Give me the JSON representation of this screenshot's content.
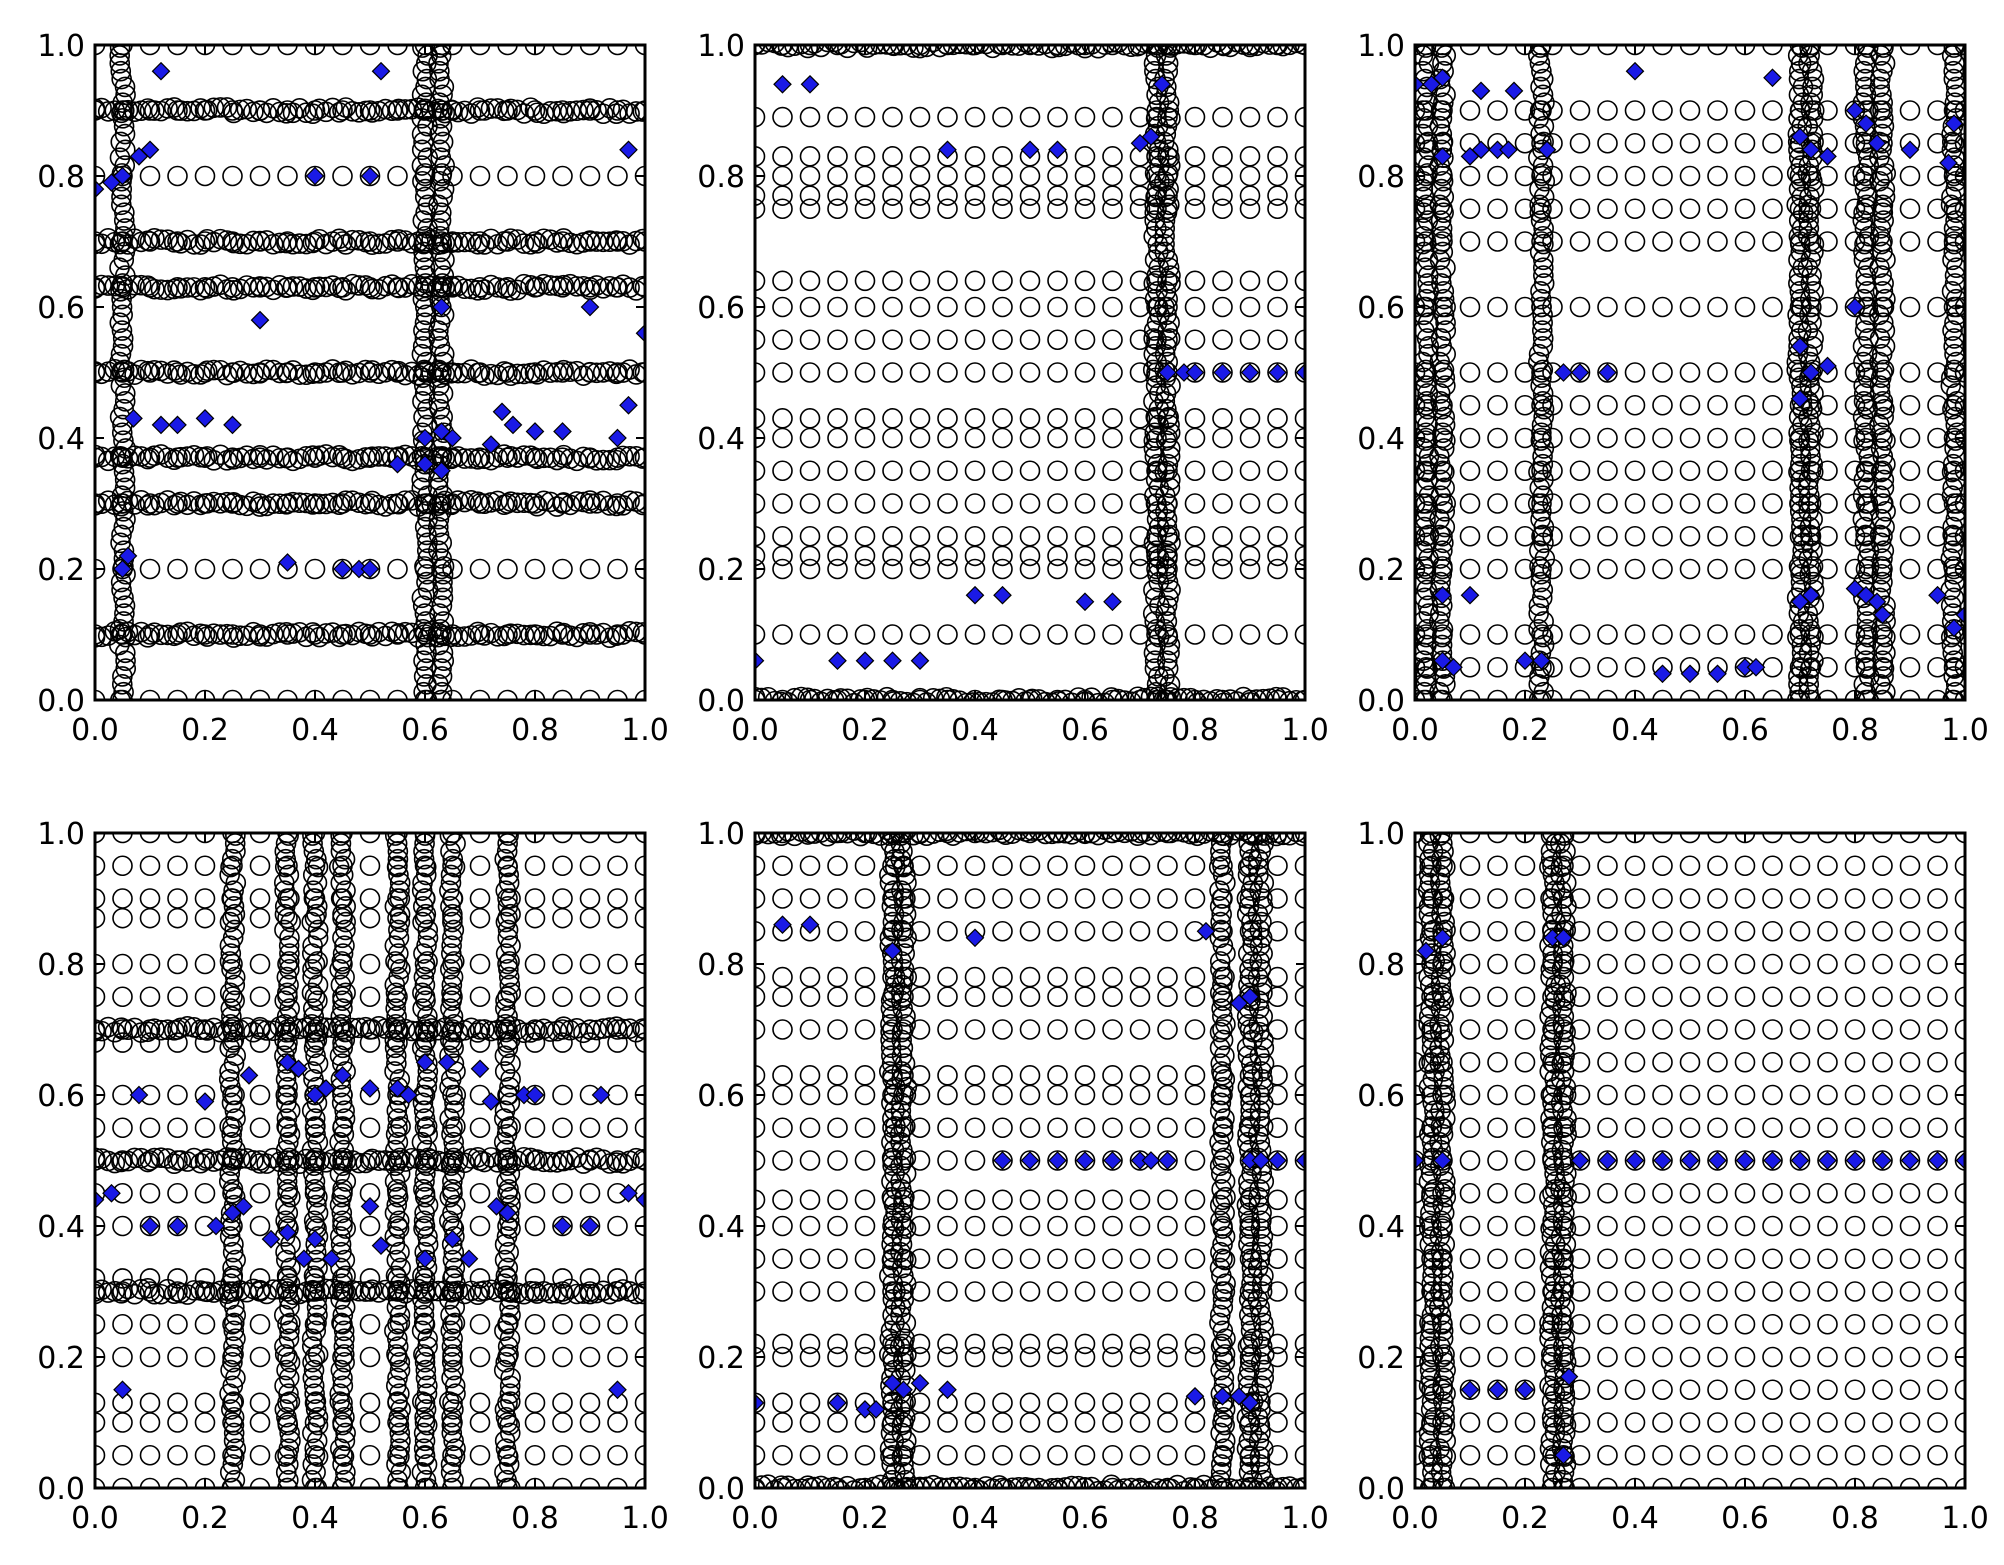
{
  "figure": {
    "layout": "2x3 grid of scatter panels",
    "background": "#ffffff"
  },
  "style": {
    "circle_marker": {
      "fill": "none",
      "stroke": "#000000"
    },
    "diamond_marker": {
      "fill": "#1a1ae6",
      "stroke": "#000000"
    },
    "axes_color": "#000000"
  },
  "chart_data": [
    {
      "type": "scatter",
      "panel": "top-left",
      "xlim": [
        0,
        1
      ],
      "ylim": [
        0,
        1
      ],
      "xticks": [
        "0.0",
        "0.2",
        "0.4",
        "0.6",
        "0.8",
        "1.0"
      ],
      "yticks": [
        "0.0",
        "0.2",
        "0.4",
        "0.6",
        "0.8",
        "1.0"
      ],
      "title": "",
      "xlabel": "",
      "ylabel": "",
      "grid": false,
      "circle_columns": [
        0.0,
        0.05,
        0.1,
        0.15,
        0.2,
        0.25,
        0.3,
        0.35,
        0.4,
        0.45,
        0.5,
        0.55,
        0.6,
        0.63,
        0.65,
        0.7,
        0.75,
        0.8,
        0.85,
        0.9,
        0.95,
        1.0
      ],
      "circle_rows": [
        0.0,
        0.1,
        0.2,
        0.3,
        0.37,
        0.5,
        0.63,
        0.7,
        0.8,
        0.9,
        1.0
      ],
      "dense_rows": [
        0.5,
        0.37,
        0.3,
        0.63,
        0.7,
        0.9,
        0.1
      ],
      "dense_columns": [
        0.05,
        0.6,
        0.63
      ],
      "diamonds": [
        [
          0.0,
          0.78
        ],
        [
          0.03,
          0.79
        ],
        [
          0.05,
          0.8
        ],
        [
          0.08,
          0.83
        ],
        [
          0.1,
          0.84
        ],
        [
          0.12,
          0.96
        ],
        [
          0.4,
          0.8
        ],
        [
          0.5,
          0.8
        ],
        [
          0.52,
          0.96
        ],
        [
          0.97,
          0.84
        ],
        [
          0.3,
          0.58
        ],
        [
          0.9,
          0.6
        ],
        [
          0.63,
          0.6
        ],
        [
          1.0,
          0.56
        ],
        [
          0.07,
          0.43
        ],
        [
          0.12,
          0.42
        ],
        [
          0.15,
          0.42
        ],
        [
          0.2,
          0.43
        ],
        [
          0.25,
          0.42
        ],
        [
          0.6,
          0.4
        ],
        [
          0.63,
          0.41
        ],
        [
          0.65,
          0.4
        ],
        [
          0.72,
          0.39
        ],
        [
          0.74,
          0.44
        ],
        [
          0.76,
          0.42
        ],
        [
          0.8,
          0.41
        ],
        [
          0.85,
          0.41
        ],
        [
          0.95,
          0.4
        ],
        [
          0.97,
          0.45
        ],
        [
          0.55,
          0.36
        ],
        [
          0.6,
          0.36
        ],
        [
          0.63,
          0.35
        ],
        [
          0.05,
          0.2
        ],
        [
          0.06,
          0.22
        ],
        [
          0.35,
          0.21
        ],
        [
          0.45,
          0.2
        ],
        [
          0.48,
          0.2
        ],
        [
          0.5,
          0.2
        ]
      ]
    },
    {
      "type": "scatter",
      "panel": "top-middle",
      "xlim": [
        0,
        1
      ],
      "ylim": [
        0,
        1
      ],
      "xticks": [
        "0.0",
        "0.2",
        "0.4",
        "0.6",
        "0.8",
        "1.0"
      ],
      "yticks": [
        "0.0",
        "0.2",
        "0.4",
        "0.6",
        "0.8",
        "1.0"
      ],
      "title": "",
      "xlabel": "",
      "ylabel": "",
      "grid": false,
      "circle_columns": [
        0.0,
        0.05,
        0.1,
        0.15,
        0.2,
        0.25,
        0.3,
        0.35,
        0.4,
        0.45,
        0.5,
        0.55,
        0.6,
        0.65,
        0.7,
        0.73,
        0.75,
        0.8,
        0.85,
        0.9,
        0.95,
        1.0
      ],
      "circle_rows": [
        0.0,
        0.1,
        0.2,
        0.22,
        0.25,
        0.3,
        0.35,
        0.4,
        0.43,
        0.5,
        0.55,
        0.6,
        0.64,
        0.75,
        0.77,
        0.8,
        0.83,
        0.89,
        1.0
      ],
      "dense_rows": [
        0.0,
        1.0
      ],
      "dense_columns": [
        0.73,
        0.75
      ],
      "diamonds": [
        [
          0.0,
          0.06
        ],
        [
          0.15,
          0.06
        ],
        [
          0.2,
          0.06
        ],
        [
          0.25,
          0.06
        ],
        [
          0.3,
          0.06
        ],
        [
          0.05,
          0.94
        ],
        [
          0.1,
          0.94
        ],
        [
          0.35,
          0.84
        ],
        [
          0.5,
          0.84
        ],
        [
          0.55,
          0.84
        ],
        [
          0.7,
          0.85
        ],
        [
          0.72,
          0.86
        ],
        [
          0.74,
          0.94
        ],
        [
          0.4,
          0.16
        ],
        [
          0.45,
          0.16
        ],
        [
          0.6,
          0.15
        ],
        [
          0.65,
          0.15
        ],
        [
          0.75,
          0.5
        ],
        [
          0.78,
          0.5
        ],
        [
          0.8,
          0.5
        ],
        [
          0.85,
          0.5
        ],
        [
          0.9,
          0.5
        ],
        [
          0.95,
          0.5
        ],
        [
          1.0,
          0.5
        ]
      ]
    },
    {
      "type": "scatter",
      "panel": "top-right",
      "xlim": [
        0,
        1
      ],
      "ylim": [
        0,
        1
      ],
      "xticks": [
        "0.0",
        "0.2",
        "0.4",
        "0.6",
        "0.8",
        "1.0"
      ],
      "yticks": [
        "0.0",
        "0.2",
        "0.4",
        "0.6",
        "0.8",
        "1.0"
      ],
      "title": "",
      "xlabel": "",
      "ylabel": "",
      "grid": false,
      "circle_columns": [
        0.0,
        0.02,
        0.05,
        0.1,
        0.15,
        0.2,
        0.23,
        0.25,
        0.3,
        0.35,
        0.4,
        0.45,
        0.5,
        0.55,
        0.6,
        0.65,
        0.7,
        0.72,
        0.75,
        0.8,
        0.82,
        0.85,
        0.9,
        0.95,
        0.98,
        1.0
      ],
      "circle_rows": [
        0.0,
        0.05,
        0.1,
        0.2,
        0.25,
        0.3,
        0.35,
        0.4,
        0.45,
        0.5,
        0.6,
        0.7,
        0.75,
        0.8,
        0.85,
        0.9,
        1.0
      ],
      "dense_rows": [],
      "dense_columns": [
        0.02,
        0.05,
        0.23,
        0.7,
        0.72,
        0.82,
        0.85,
        0.98
      ],
      "diamonds": [
        [
          0.0,
          0.94
        ],
        [
          0.03,
          0.94
        ],
        [
          0.05,
          0.95
        ],
        [
          0.12,
          0.93
        ],
        [
          0.18,
          0.93
        ],
        [
          0.24,
          0.84
        ],
        [
          0.4,
          0.96
        ],
        [
          0.65,
          0.95
        ],
        [
          0.7,
          0.86
        ],
        [
          0.72,
          0.84
        ],
        [
          0.75,
          0.83
        ],
        [
          0.8,
          0.9
        ],
        [
          0.82,
          0.88
        ],
        [
          0.84,
          0.85
        ],
        [
          0.9,
          0.84
        ],
        [
          0.97,
          0.82
        ],
        [
          0.98,
          0.88
        ],
        [
          0.05,
          0.83
        ],
        [
          0.1,
          0.83
        ],
        [
          0.12,
          0.84
        ],
        [
          0.15,
          0.84
        ],
        [
          0.17,
          0.84
        ],
        [
          0.27,
          0.5
        ],
        [
          0.3,
          0.5
        ],
        [
          0.35,
          0.5
        ],
        [
          0.7,
          0.54
        ],
        [
          0.72,
          0.5
        ],
        [
          0.8,
          0.6
        ],
        [
          0.75,
          0.51
        ],
        [
          0.7,
          0.46
        ],
        [
          0.05,
          0.16
        ],
        [
          0.1,
          0.16
        ],
        [
          0.05,
          0.06
        ],
        [
          0.07,
          0.05
        ],
        [
          0.2,
          0.06
        ],
        [
          0.23,
          0.06
        ],
        [
          0.45,
          0.04
        ],
        [
          0.5,
          0.04
        ],
        [
          0.55,
          0.04
        ],
        [
          0.6,
          0.05
        ],
        [
          0.62,
          0.05
        ],
        [
          0.7,
          0.15
        ],
        [
          0.72,
          0.16
        ],
        [
          0.8,
          0.17
        ],
        [
          0.82,
          0.16
        ],
        [
          0.84,
          0.15
        ],
        [
          0.85,
          0.13
        ],
        [
          0.95,
          0.16
        ],
        [
          0.98,
          0.11
        ],
        [
          1.0,
          0.13
        ]
      ]
    },
    {
      "type": "scatter",
      "panel": "bottom-left",
      "xlim": [
        0,
        1
      ],
      "ylim": [
        0,
        1
      ],
      "xticks": [
        "0.0",
        "0.2",
        "0.4",
        "0.6",
        "0.8",
        "1.0"
      ],
      "yticks": [
        "0.0",
        "0.2",
        "0.4",
        "0.6",
        "0.8",
        "1.0"
      ],
      "title": "",
      "xlabel": "",
      "ylabel": "",
      "grid": false,
      "circle_columns": [
        0.0,
        0.05,
        0.1,
        0.15,
        0.2,
        0.25,
        0.3,
        0.35,
        0.4,
        0.45,
        0.5,
        0.55,
        0.6,
        0.65,
        0.7,
        0.75,
        0.8,
        0.85,
        0.9,
        0.95,
        1.0
      ],
      "circle_rows": [
        0.0,
        0.05,
        0.1,
        0.13,
        0.2,
        0.25,
        0.3,
        0.32,
        0.4,
        0.45,
        0.5,
        0.55,
        0.6,
        0.68,
        0.7,
        0.75,
        0.8,
        0.87,
        0.9,
        0.95,
        1.0
      ],
      "dense_rows": [
        0.5,
        0.3,
        0.7
      ],
      "dense_columns": [
        0.25,
        0.35,
        0.4,
        0.45,
        0.55,
        0.6,
        0.65,
        0.75
      ],
      "diamonds": [
        [
          0.08,
          0.6
        ],
        [
          0.2,
          0.59
        ],
        [
          0.28,
          0.63
        ],
        [
          0.35,
          0.65
        ],
        [
          0.37,
          0.64
        ],
        [
          0.4,
          0.6
        ],
        [
          0.42,
          0.61
        ],
        [
          0.45,
          0.63
        ],
        [
          0.5,
          0.61
        ],
        [
          0.55,
          0.61
        ],
        [
          0.57,
          0.6
        ],
        [
          0.6,
          0.65
        ],
        [
          0.64,
          0.65
        ],
        [
          0.7,
          0.64
        ],
        [
          0.72,
          0.59
        ],
        [
          0.78,
          0.6
        ],
        [
          0.8,
          0.6
        ],
        [
          0.92,
          0.6
        ],
        [
          0.0,
          0.44
        ],
        [
          0.03,
          0.45
        ],
        [
          0.1,
          0.4
        ],
        [
          0.15,
          0.4
        ],
        [
          0.22,
          0.4
        ],
        [
          0.25,
          0.42
        ],
        [
          0.27,
          0.43
        ],
        [
          0.32,
          0.38
        ],
        [
          0.35,
          0.39
        ],
        [
          0.38,
          0.35
        ],
        [
          0.4,
          0.38
        ],
        [
          0.43,
          0.35
        ],
        [
          0.5,
          0.43
        ],
        [
          0.52,
          0.37
        ],
        [
          0.6,
          0.35
        ],
        [
          0.65,
          0.38
        ],
        [
          0.68,
          0.35
        ],
        [
          0.73,
          0.43
        ],
        [
          0.75,
          0.42
        ],
        [
          0.85,
          0.4
        ],
        [
          0.9,
          0.4
        ],
        [
          0.97,
          0.45
        ],
        [
          1.0,
          0.44
        ],
        [
          0.05,
          0.15
        ],
        [
          0.95,
          0.15
        ]
      ]
    },
    {
      "type": "scatter",
      "panel": "bottom-middle",
      "xlim": [
        0,
        1
      ],
      "ylim": [
        0,
        1
      ],
      "xticks": [
        "0.0",
        "0.2",
        "0.4",
        "0.6",
        "0.8",
        "1.0"
      ],
      "yticks": [
        "0.0",
        "0.2",
        "0.4",
        "0.6",
        "0.8",
        "1.0"
      ],
      "title": "",
      "xlabel": "",
      "ylabel": "",
      "grid": false,
      "circle_columns": [
        0.0,
        0.05,
        0.1,
        0.15,
        0.2,
        0.25,
        0.27,
        0.3,
        0.35,
        0.4,
        0.45,
        0.5,
        0.55,
        0.6,
        0.65,
        0.7,
        0.75,
        0.8,
        0.85,
        0.9,
        0.95,
        1.0
      ],
      "circle_rows": [
        0.0,
        0.05,
        0.1,
        0.13,
        0.2,
        0.22,
        0.3,
        0.35,
        0.4,
        0.44,
        0.5,
        0.55,
        0.6,
        0.63,
        0.7,
        0.75,
        0.78,
        0.85,
        0.9,
        0.95,
        1.0
      ],
      "dense_rows": [
        0.0,
        1.0
      ],
      "dense_columns": [
        0.25,
        0.27,
        0.85,
        0.9,
        0.92
      ],
      "diamonds": [
        [
          0.05,
          0.86
        ],
        [
          0.1,
          0.86
        ],
        [
          0.25,
          0.82
        ],
        [
          0.4,
          0.84
        ],
        [
          0.82,
          0.85
        ],
        [
          0.88,
          0.74
        ],
        [
          0.9,
          0.75
        ],
        [
          0.45,
          0.5
        ],
        [
          0.5,
          0.5
        ],
        [
          0.55,
          0.5
        ],
        [
          0.6,
          0.5
        ],
        [
          0.65,
          0.5
        ],
        [
          0.7,
          0.5
        ],
        [
          0.72,
          0.5
        ],
        [
          0.75,
          0.5
        ],
        [
          0.9,
          0.5
        ],
        [
          0.92,
          0.5
        ],
        [
          0.95,
          0.5
        ],
        [
          1.0,
          0.5
        ],
        [
          0.0,
          0.13
        ],
        [
          0.15,
          0.13
        ],
        [
          0.2,
          0.12
        ],
        [
          0.22,
          0.12
        ],
        [
          0.25,
          0.16
        ],
        [
          0.27,
          0.15
        ],
        [
          0.3,
          0.16
        ],
        [
          0.35,
          0.15
        ],
        [
          0.8,
          0.14
        ],
        [
          0.85,
          0.14
        ],
        [
          0.88,
          0.14
        ],
        [
          0.9,
          0.13
        ]
      ]
    },
    {
      "type": "scatter",
      "panel": "bottom-right",
      "xlim": [
        0,
        1
      ],
      "ylim": [
        0,
        1
      ],
      "xticks": [
        "0.0",
        "0.2",
        "0.4",
        "0.6",
        "0.8",
        "1.0"
      ],
      "yticks": [
        "0.0",
        "0.2",
        "0.4",
        "0.6",
        "0.8",
        "1.0"
      ],
      "title": "",
      "xlabel": "",
      "ylabel": "",
      "grid": false,
      "circle_columns": [
        0.0,
        0.03,
        0.05,
        0.1,
        0.15,
        0.2,
        0.25,
        0.27,
        0.3,
        0.35,
        0.4,
        0.45,
        0.5,
        0.55,
        0.6,
        0.65,
        0.7,
        0.75,
        0.8,
        0.85,
        0.9,
        0.95,
        1.0
      ],
      "circle_rows": [
        0.0,
        0.05,
        0.1,
        0.15,
        0.2,
        0.25,
        0.3,
        0.35,
        0.4,
        0.45,
        0.5,
        0.55,
        0.6,
        0.65,
        0.7,
        0.75,
        0.8,
        0.85,
        0.9,
        0.95,
        1.0
      ],
      "dense_rows": [],
      "dense_columns": [
        0.03,
        0.05,
        0.25,
        0.27
      ],
      "diamonds": [
        [
          0.05,
          0.84
        ],
        [
          0.02,
          0.82
        ],
        [
          0.25,
          0.84
        ],
        [
          0.27,
          0.84
        ],
        [
          0.0,
          0.5
        ],
        [
          0.05,
          0.5
        ],
        [
          0.3,
          0.5
        ],
        [
          0.35,
          0.5
        ],
        [
          0.4,
          0.5
        ],
        [
          0.45,
          0.5
        ],
        [
          0.5,
          0.5
        ],
        [
          0.55,
          0.5
        ],
        [
          0.6,
          0.5
        ],
        [
          0.65,
          0.5
        ],
        [
          0.7,
          0.5
        ],
        [
          0.75,
          0.5
        ],
        [
          0.8,
          0.5
        ],
        [
          0.85,
          0.5
        ],
        [
          0.9,
          0.5
        ],
        [
          0.95,
          0.5
        ],
        [
          1.0,
          0.5
        ],
        [
          0.1,
          0.15
        ],
        [
          0.15,
          0.15
        ],
        [
          0.2,
          0.15
        ],
        [
          0.28,
          0.17
        ],
        [
          0.27,
          0.05
        ]
      ]
    }
  ]
}
